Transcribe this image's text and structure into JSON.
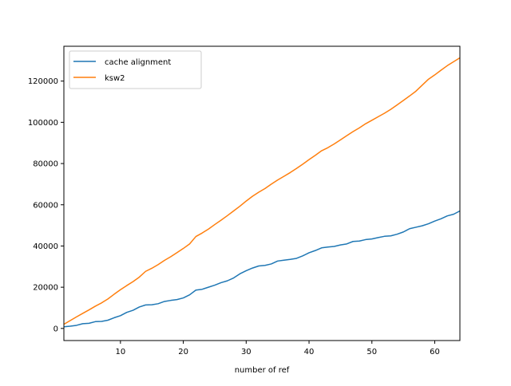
{
  "chart_data": {
    "type": "line",
    "title": "",
    "xlabel": "number of ref",
    "ylabel": "",
    "xlim": [
      1,
      64
    ],
    "ylim": [
      -5870,
      136900
    ],
    "x_ticks": [
      10,
      20,
      30,
      40,
      50,
      60
    ],
    "y_ticks": [
      0,
      20000,
      40000,
      60000,
      80000,
      100000,
      120000
    ],
    "grid": false,
    "legend_position": "top-left",
    "x": [
      1,
      2,
      3,
      4,
      5,
      6,
      7,
      8,
      9,
      10,
      11,
      12,
      13,
      14,
      15,
      16,
      17,
      18,
      19,
      20,
      21,
      22,
      23,
      24,
      25,
      26,
      27,
      28,
      29,
      30,
      31,
      32,
      33,
      34,
      35,
      36,
      37,
      38,
      39,
      40,
      41,
      42,
      43,
      44,
      45,
      46,
      47,
      48,
      49,
      50,
      51,
      52,
      53,
      54,
      55,
      56,
      57,
      58,
      59,
      60,
      61,
      62,
      63,
      64
    ],
    "series": [
      {
        "name": "cache alignment",
        "color": "#1f77b4",
        "values": [
          800,
          1100,
          1500,
          2300,
          2500,
          3300,
          3400,
          4000,
          5200,
          6200,
          7800,
          8800,
          10400,
          11400,
          11500,
          12000,
          13100,
          13600,
          14000,
          14800,
          16300,
          18600,
          19000,
          20000,
          21000,
          22200,
          23100,
          24500,
          26500,
          28000,
          29300,
          30300,
          30600,
          31300,
          32700,
          33100,
          33500,
          34000,
          35200,
          36700,
          37800,
          39100,
          39500,
          39800,
          40500,
          41000,
          42200,
          42400,
          43100,
          43400,
          44100,
          44700,
          44900,
          45700,
          46800,
          48400,
          49100,
          49800,
          50800,
          52100,
          53200,
          54600,
          55400,
          57000
        ]
      },
      {
        "name": "ksw2",
        "color": "#ff7f0e",
        "values": [
          2000,
          3800,
          5600,
          7300,
          9000,
          10800,
          12400,
          14300,
          16600,
          18800,
          20800,
          22700,
          24900,
          27700,
          29200,
          31000,
          33000,
          34800,
          36800,
          38800,
          41000,
          44600,
          46300,
          48200,
          50400,
          52500,
          54700,
          57000,
          59300,
          61800,
          64100,
          66100,
          67900,
          70000,
          72000,
          73800,
          75600,
          77600,
          79700,
          81900,
          84000,
          86200,
          87700,
          89500,
          91500,
          93500,
          95500,
          97300,
          99300,
          101000,
          102700,
          104400,
          106300,
          108400,
          110600,
          112800,
          115100,
          118000,
          120900,
          123000,
          125300,
          127500,
          129400,
          131300
        ]
      }
    ]
  }
}
